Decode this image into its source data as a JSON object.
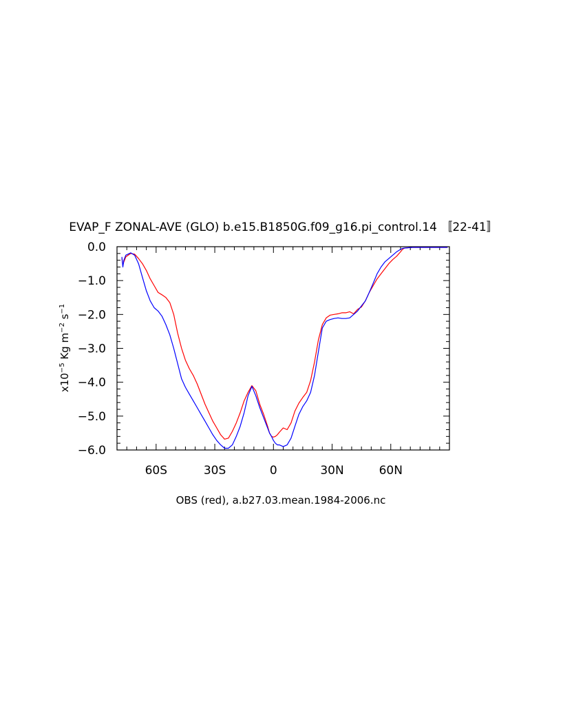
{
  "chart_data": {
    "type": "line",
    "title": "EVAP_F ZONAL-AVE (GLO) b.e15.B1850G.f09_g16.pi_control.14 〚22-41〛",
    "xlabel": "OBS (red), a.b27.03.mean.1984-2006.nc",
    "ylabel": {
      "prefix": "x10",
      "exp1": "−5",
      "mid": " Kg m",
      "exp2": "−2",
      "mid2": " s",
      "exp3": "−1"
    },
    "xlim": [
      -80,
      90
    ],
    "ylim": [
      -6.0,
      0.0
    ],
    "xticks": [
      {
        "value": -60,
        "label": "60S"
      },
      {
        "value": -30,
        "label": "30S"
      },
      {
        "value": 0,
        "label": "0"
      },
      {
        "value": 30,
        "label": "30N"
      },
      {
        "value": 60,
        "label": "60N"
      }
    ],
    "yticks": [
      {
        "value": 0.0,
        "label": "0.0"
      },
      {
        "value": -1.0,
        "label": "−1.0"
      },
      {
        "value": -2.0,
        "label": "−2.0"
      },
      {
        "value": -3.0,
        "label": "−3.0"
      },
      {
        "value": -4.0,
        "label": "−4.0"
      },
      {
        "value": -5.0,
        "label": "−5.0"
      },
      {
        "value": -6.0,
        "label": "−6.0"
      }
    ],
    "grid": false,
    "series": [
      {
        "color": "#ff0000",
        "x": [
          -77.5,
          -77,
          -76.5,
          -75.5,
          -73,
          -71,
          -69,
          -67,
          -65,
          -63,
          -61,
          -59,
          -57,
          -55,
          -53,
          -51,
          -49,
          -47,
          -45,
          -43,
          -41,
          -39,
          -37,
          -35,
          -33,
          -31,
          -29,
          -27,
          -25,
          -23,
          -21,
          -19,
          -17,
          -15,
          -13,
          -11,
          -9,
          -7,
          -5,
          -3,
          -2,
          -1,
          0,
          1,
          2,
          3,
          5,
          7,
          9,
          11,
          13,
          15,
          17,
          19,
          21,
          23,
          25,
          27,
          29,
          31,
          33,
          35,
          37,
          39,
          41,
          43,
          45,
          47,
          49,
          51,
          53,
          55,
          57,
          59,
          61,
          63,
          65,
          66,
          67,
          69,
          71,
          73,
          75,
          77,
          79,
          81,
          83,
          85,
          87,
          89
        ],
        "y": [
          -0.35,
          -0.55,
          -0.45,
          -0.3,
          -0.2,
          -0.22,
          -0.35,
          -0.5,
          -0.7,
          -0.95,
          -1.15,
          -1.35,
          -1.42,
          -1.5,
          -1.65,
          -2.0,
          -2.55,
          -3.0,
          -3.35,
          -3.6,
          -3.8,
          -4.05,
          -4.35,
          -4.65,
          -4.9,
          -5.15,
          -5.35,
          -5.55,
          -5.68,
          -5.65,
          -5.45,
          -5.2,
          -4.9,
          -4.55,
          -4.3,
          -4.1,
          -4.25,
          -4.65,
          -4.95,
          -5.3,
          -5.5,
          -5.6,
          -5.62,
          -5.6,
          -5.55,
          -5.48,
          -5.35,
          -5.4,
          -5.2,
          -4.85,
          -4.62,
          -4.45,
          -4.3,
          -3.95,
          -3.4,
          -2.75,
          -2.3,
          -2.1,
          -2.02,
          -2.0,
          -1.98,
          -1.95,
          -1.95,
          -1.92,
          -1.98,
          -1.85,
          -1.78,
          -1.6,
          -1.35,
          -1.15,
          -0.95,
          -0.8,
          -0.65,
          -0.5,
          -0.38,
          -0.28,
          -0.15,
          -0.08,
          -0.04,
          -0.03,
          -0.02,
          -0.02,
          -0.02,
          -0.02,
          -0.02,
          -0.02,
          -0.02,
          -0.02,
          -0.02,
          -0.02
        ]
      },
      {
        "color": "#0000ff",
        "x": [
          -77.5,
          -77,
          -76.5,
          -75.5,
          -73,
          -71,
          -69,
          -67,
          -65,
          -63,
          -61,
          -59,
          -57,
          -55,
          -53,
          -51,
          -49,
          -47,
          -45,
          -43,
          -41,
          -39,
          -37,
          -35,
          -33,
          -31,
          -29,
          -27,
          -25,
          -23,
          -21,
          -19,
          -17,
          -15,
          -13,
          -11,
          -9,
          -7,
          -5,
          -3,
          -2,
          -1,
          0,
          1,
          2,
          3,
          5,
          7,
          9,
          11,
          13,
          15,
          17,
          19,
          21,
          23,
          25,
          27,
          29,
          31,
          33,
          35,
          37,
          39,
          41,
          43,
          45,
          47,
          49,
          51,
          53,
          55,
          57,
          59,
          61,
          63,
          65,
          66,
          67,
          69,
          71,
          73,
          75,
          77,
          79,
          81,
          83,
          85,
          87,
          89
        ],
        "y": [
          -0.3,
          -0.6,
          -0.4,
          -0.25,
          -0.18,
          -0.25,
          -0.5,
          -0.9,
          -1.3,
          -1.6,
          -1.8,
          -1.9,
          -2.05,
          -2.3,
          -2.6,
          -3.0,
          -3.45,
          -3.9,
          -4.15,
          -4.35,
          -4.55,
          -4.75,
          -4.95,
          -5.15,
          -5.35,
          -5.55,
          -5.72,
          -5.85,
          -5.95,
          -5.95,
          -5.85,
          -5.6,
          -5.3,
          -4.9,
          -4.4,
          -4.12,
          -4.4,
          -4.75,
          -5.05,
          -5.35,
          -5.5,
          -5.6,
          -5.72,
          -5.8,
          -5.85,
          -5.85,
          -5.9,
          -5.85,
          -5.65,
          -5.3,
          -4.95,
          -4.72,
          -4.55,
          -4.3,
          -3.8,
          -3.1,
          -2.4,
          -2.2,
          -2.15,
          -2.12,
          -2.1,
          -2.12,
          -2.12,
          -2.1,
          -2.0,
          -1.9,
          -1.75,
          -1.6,
          -1.35,
          -1.08,
          -0.8,
          -0.6,
          -0.45,
          -0.35,
          -0.25,
          -0.15,
          -0.08,
          -0.05,
          -0.04,
          -0.03,
          -0.02,
          -0.02,
          -0.02,
          -0.02,
          -0.02,
          -0.02,
          -0.02,
          -0.02,
          -0.02,
          -0.02
        ]
      }
    ]
  }
}
